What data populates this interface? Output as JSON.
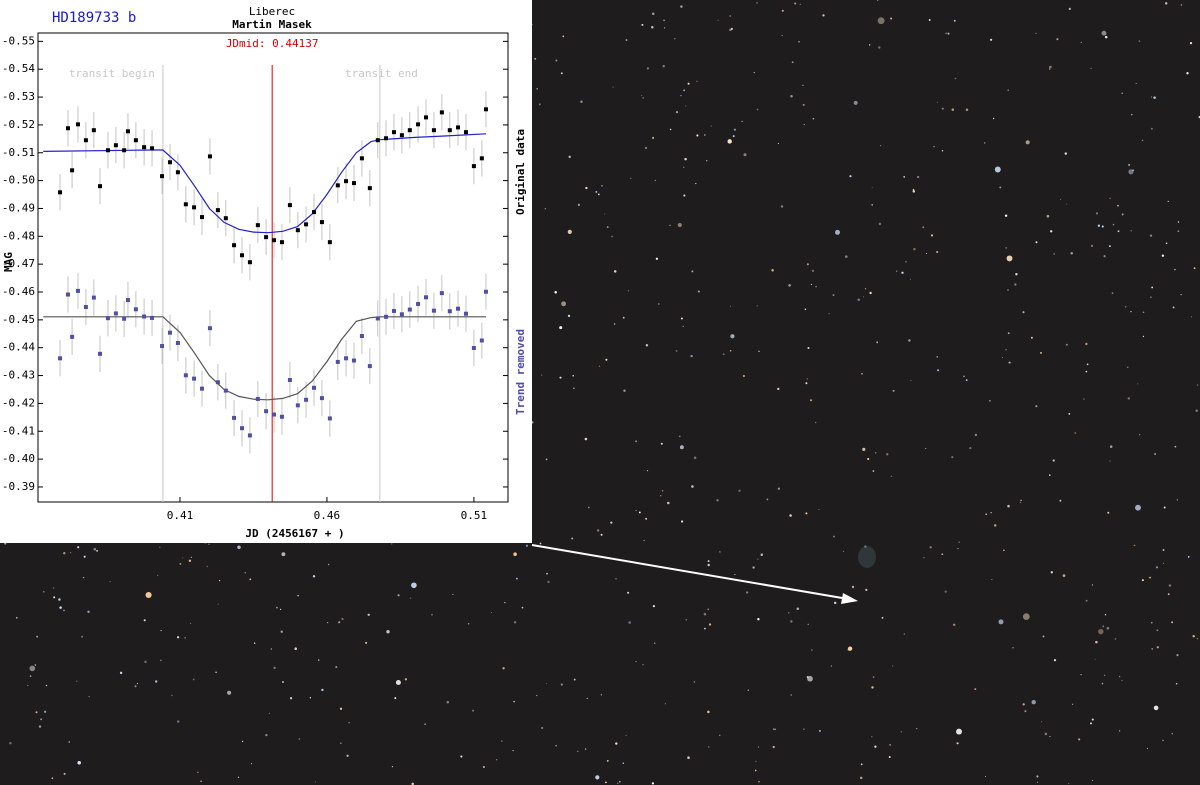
{
  "chart_data": {
    "type": "scatter",
    "title": "HD189733 b",
    "location": "Liberec",
    "observer": "Martin Masek",
    "ylabel": "MAG",
    "xlabel": "JD (2456167 + )",
    "xlim": [
      0.3617,
      0.5216
    ],
    "ylim": [
      -0.3846,
      -0.553
    ],
    "xticks": [
      0.41,
      0.46,
      0.51
    ],
    "yticks": [
      -0.55,
      -0.54,
      -0.53,
      -0.52,
      -0.51,
      {
        "value": -0.5,
        "label": "-0.50"
      },
      -0.49,
      -0.48,
      -0.47,
      -0.46,
      -0.45,
      -0.44,
      -0.43,
      -0.42,
      -0.41,
      {
        "value": -0.4,
        "label": "-0.40"
      },
      -0.39
    ],
    "markers": [
      {
        "label": "transit begin",
        "x": 0.4042,
        "color": "#c8c8c8"
      },
      {
        "label": "JDmid: 0.44137",
        "x": 0.44137,
        "color": "#dd0000"
      },
      {
        "label": "transit end",
        "x": 0.478,
        "color": "#c8c8c8"
      }
    ],
    "series": [
      {
        "name": "Original data",
        "color": "#000000",
        "error": 0.0065,
        "x": [
          0.3692,
          0.3719,
          0.3733,
          0.3753,
          0.378,
          0.3807,
          0.3828,
          0.3855,
          0.3882,
          0.391,
          0.3923,
          0.395,
          0.3978,
          0.4005,
          0.4039,
          0.4066,
          0.4093,
          0.412,
          0.4148,
          0.4175,
          0.4202,
          0.4229,
          0.4256,
          0.4284,
          0.4311,
          0.4338,
          0.4365,
          0.4393,
          0.442,
          0.4447,
          0.4474,
          0.4501,
          0.4529,
          0.4556,
          0.4583,
          0.461,
          0.4637,
          0.4665,
          0.4692,
          0.4719,
          0.4746,
          0.4773,
          0.4801,
          0.4828,
          0.4855,
          0.4882,
          0.491,
          0.4937,
          0.4964,
          0.4991,
          0.5018,
          0.5046,
          0.5073,
          0.51,
          0.5127,
          0.5141
        ],
        "values": [
          -0.4958,
          -0.5188,
          -0.5037,
          -0.5202,
          -0.5145,
          -0.5181,
          -0.498,
          -0.5109,
          -0.5127,
          -0.5109,
          -0.5177,
          -0.5145,
          -0.512,
          -0.5116,
          -0.5016,
          -0.5066,
          -0.503,
          -0.4915,
          -0.4904,
          -0.4869,
          -0.5087,
          -0.4894,
          -0.4865,
          -0.4768,
          -0.4732,
          -0.4707,
          -0.484,
          -0.4797,
          -0.4786,
          -0.4779,
          -0.4912,
          -0.4822,
          -0.4843,
          -0.4887,
          -0.4851,
          -0.4779,
          -0.4983,
          -0.4998,
          -0.4991,
          -0.508,
          -0.4973,
          -0.5145,
          -0.5152,
          -0.5174,
          -0.5163,
          -0.5181,
          -0.5202,
          -0.5227,
          -0.5181,
          -0.5245,
          -0.5181,
          -0.5191,
          -0.5174,
          -0.5052,
          -0.508,
          -0.5256
        ]
      },
      {
        "name": "Trend removed",
        "color": "#4f4fa8",
        "error": 0.0065,
        "x": [
          0.3692,
          0.3719,
          0.3733,
          0.3753,
          0.378,
          0.3807,
          0.3828,
          0.3855,
          0.3882,
          0.391,
          0.3923,
          0.395,
          0.3978,
          0.4005,
          0.4039,
          0.4066,
          0.4093,
          0.412,
          0.4148,
          0.4175,
          0.4202,
          0.4229,
          0.4256,
          0.4284,
          0.4311,
          0.4338,
          0.4365,
          0.4393,
          0.442,
          0.4447,
          0.4474,
          0.4501,
          0.4529,
          0.4556,
          0.4583,
          0.461,
          0.4637,
          0.4665,
          0.4692,
          0.4719,
          0.4746,
          0.4773,
          0.4801,
          0.4828,
          0.4855,
          0.4882,
          0.491,
          0.4937,
          0.4964,
          0.4991,
          0.5018,
          0.5046,
          0.5073,
          0.51,
          0.5127,
          0.5141
        ],
        "values": [
          -0.4362,
          -0.4591,
          -0.4439,
          -0.4604,
          -0.4546,
          -0.458,
          -0.4378,
          -0.4506,
          -0.4523,
          -0.4504,
          -0.4571,
          -0.4538,
          -0.4512,
          -0.4507,
          -0.4406,
          -0.4454,
          -0.4417,
          -0.4301,
          -0.4289,
          -0.4253,
          -0.447,
          -0.4276,
          -0.4246,
          -0.4148,
          -0.4111,
          -0.4085,
          -0.4216,
          -0.4172,
          -0.416,
          -0.4152,
          -0.4284,
          -0.4193,
          -0.4213,
          -0.4256,
          -0.4219,
          -0.4146,
          -0.4349,
          -0.4362,
          -0.4354,
          -0.4442,
          -0.4334,
          -0.4505,
          -0.4511,
          -0.4532,
          -0.452,
          -0.4537,
          -0.4557,
          -0.4581,
          -0.4533,
          -0.4596,
          -0.4531,
          -0.454,
          -0.4522,
          -0.4399,
          -0.4426,
          -0.4601
        ]
      }
    ],
    "fits": [
      {
        "color": "#2222cc",
        "x": [
          0.3635,
          0.4,
          0.4042,
          0.41,
          0.415,
          0.42,
          0.425,
          0.43,
          0.435,
          0.44,
          0.445,
          0.45,
          0.455,
          0.46,
          0.465,
          0.47,
          0.475,
          0.478,
          0.49,
          0.5,
          0.5141
        ],
        "values": [
          -0.5105,
          -0.511,
          -0.511,
          -0.5055,
          -0.498,
          -0.49,
          -0.485,
          -0.4825,
          -0.4815,
          -0.4813,
          -0.4818,
          -0.4835,
          -0.488,
          -0.495,
          -0.503,
          -0.51,
          -0.514,
          -0.5147,
          -0.5155,
          -0.516,
          -0.5168
        ]
      },
      {
        "color": "#555555",
        "x": [
          0.3635,
          0.4,
          0.4042,
          0.41,
          0.415,
          0.42,
          0.425,
          0.43,
          0.435,
          0.44,
          0.445,
          0.45,
          0.455,
          0.46,
          0.465,
          0.47,
          0.475,
          0.478,
          0.49,
          0.5,
          0.5141
        ],
        "values": [
          -0.4511,
          -0.4511,
          -0.4511,
          -0.4455,
          -0.438,
          -0.43,
          -0.425,
          -0.4225,
          -0.4215,
          -0.4213,
          -0.4218,
          -0.4235,
          -0.428,
          -0.435,
          -0.443,
          -0.4495,
          -0.4508,
          -0.4511,
          -0.4511,
          -0.4511,
          -0.4511
        ]
      }
    ]
  }
}
